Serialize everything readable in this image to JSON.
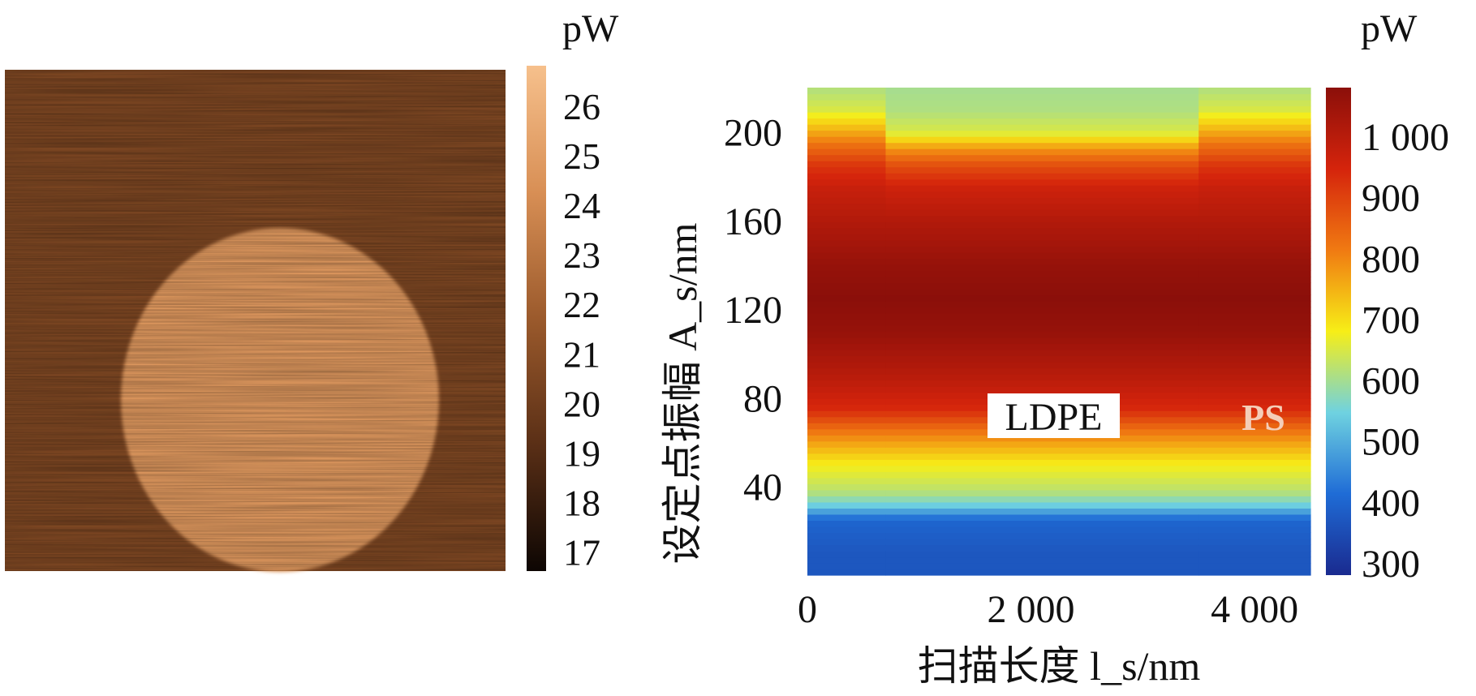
{
  "chart_data": [
    {
      "type": "heatmap",
      "colorbar": {
        "unit": "pW",
        "ticks": [
          "26",
          "25",
          "24",
          "23",
          "22",
          "21",
          "20",
          "19",
          "18",
          "17"
        ],
        "range": [
          16.6,
          26.8
        ],
        "colors": [
          "#0d0603",
          "#5a2f16",
          "#9b5a2c",
          "#d88f55",
          "#f6c08c"
        ]
      },
      "image": {
        "background_level": 20.5,
        "disk_level": 24.6,
        "disk_region": "circular domain, center-left"
      }
    },
    {
      "type": "heatmap",
      "ylabel": "设定点振幅 A_s/nm",
      "xlabel": "扫描长度 l_s/nm",
      "xlim": [
        0,
        4500
      ],
      "ylim": [
        0,
        220
      ],
      "xticks": [
        "0",
        "2 000",
        "4 000"
      ],
      "yticks": [
        "40",
        "80",
        "120",
        "160",
        "200"
      ],
      "colorbar": {
        "unit": "pW",
        "ticks": [
          "1 000",
          "900",
          "800",
          "700",
          "600",
          "500",
          "400",
          "300"
        ],
        "range": [
          280,
          1080
        ],
        "colors": [
          "#1a2a8f",
          "#1f6cd6",
          "#6fd2e0",
          "#f7ee17",
          "#f07a12",
          "#d5240c",
          "#8b0f0a"
        ]
      },
      "regions": [
        {
          "label": "PS",
          "x_range": [
            0,
            700
          ]
        },
        {
          "label": "LDPE",
          "x_range": [
            700,
            3500
          ]
        },
        {
          "label": "PS",
          "x_range": [
            3500,
            4500
          ]
        }
      ],
      "annotations": [
        {
          "text": "LDPE",
          "x": 2550,
          "y": 73,
          "boxed": true
        },
        {
          "text": "PS",
          "x": 4100,
          "y": 73,
          "boxed": false
        }
      ],
      "profile_ldpe": {
        "y": [
          10,
          25,
          32,
          38,
          50,
          60,
          65,
          75,
          90,
          110,
          125,
          140,
          160,
          175,
          185,
          192,
          200,
          210,
          220
        ],
        "power": [
          370,
          400,
          550,
          620,
          680,
          770,
          820,
          940,
          1000,
          1060,
          1080,
          1060,
          1010,
          960,
          880,
          790,
          650,
          610,
          600
        ]
      },
      "profile_ps": {
        "y": [
          10,
          25,
          32,
          38,
          50,
          60,
          65,
          75,
          90,
          110,
          125,
          140,
          160,
          175,
          185,
          195,
          200,
          210,
          220
        ],
        "power": [
          370,
          400,
          550,
          620,
          680,
          770,
          820,
          940,
          1000,
          1060,
          1080,
          1060,
          1010,
          970,
          920,
          820,
          760,
          650,
          610
        ]
      }
    }
  ]
}
